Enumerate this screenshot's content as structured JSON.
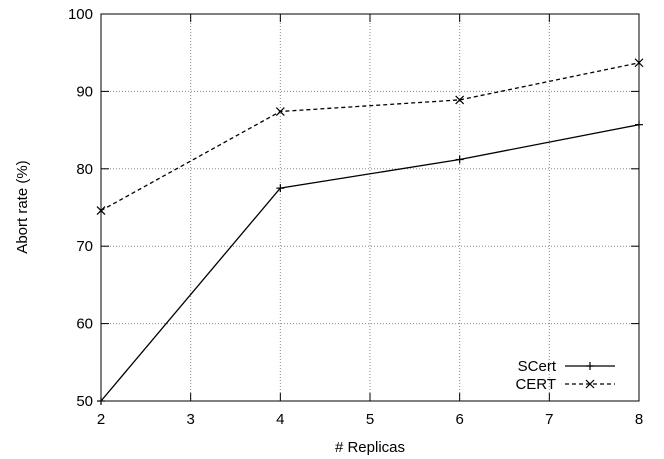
{
  "chart_data": {
    "type": "line",
    "title": "",
    "xlabel": "# Replicas",
    "ylabel": "Abort rate (%)",
    "xlim": [
      2,
      8
    ],
    "ylim": [
      50,
      100
    ],
    "xticks": [
      2,
      3,
      4,
      5,
      6,
      7,
      8
    ],
    "yticks": [
      50,
      60,
      70,
      80,
      90,
      100
    ],
    "grid": true,
    "legend_position": "bottom-right",
    "series": [
      {
        "name": "SCert",
        "line_style": "solid",
        "marker": "plus",
        "color": "#000000",
        "x": [
          2,
          4,
          6,
          8
        ],
        "y": [
          50.0,
          77.5,
          81.2,
          85.7
        ]
      },
      {
        "name": "CERT",
        "line_style": "dashed",
        "marker": "cross",
        "color": "#000000",
        "x": [
          2,
          4,
          6,
          8
        ],
        "y": [
          74.6,
          87.4,
          88.9,
          93.7
        ]
      }
    ]
  }
}
